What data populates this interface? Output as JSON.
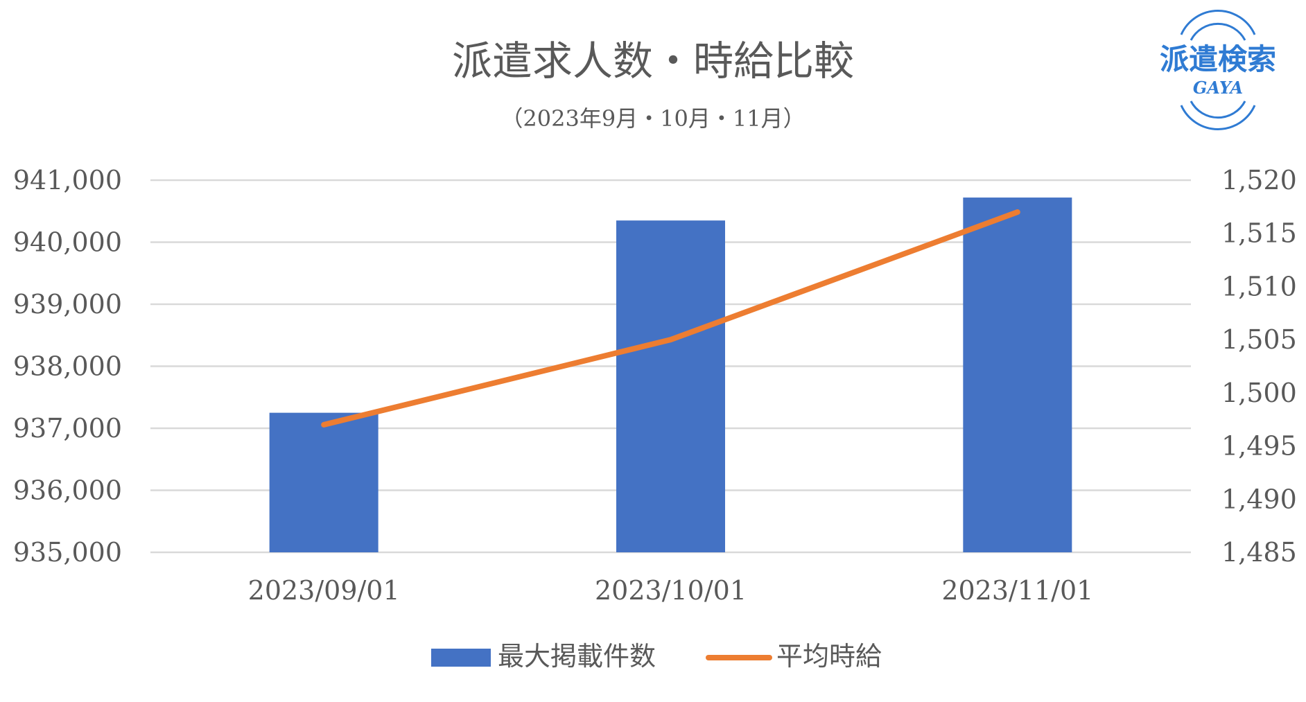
{
  "chart_data": {
    "type": "bar+line",
    "title": "派遣求人数・時給比較",
    "subtitle": "（2023年9月・10月・11月）",
    "categories": [
      "2023/09/01",
      "2023/10/01",
      "2023/11/01"
    ],
    "y_left": {
      "ticks": [
        "935,000",
        "936,000",
        "937,000",
        "938,000",
        "939,000",
        "940,000",
        "941,000"
      ],
      "ylim": [
        935000,
        941000
      ]
    },
    "y_right": {
      "ticks": [
        "1,485",
        "1,490",
        "1,495",
        "1,500",
        "1,505",
        "1,510",
        "1,515",
        "1,520"
      ],
      "ylim": [
        1485,
        1520
      ]
    },
    "series": [
      {
        "name": "最大掲載件数",
        "kind": "bar",
        "axis": "left",
        "color": "#4472C4",
        "values": [
          937250,
          940350,
          940720
        ]
      },
      {
        "name": "平均時給",
        "kind": "line",
        "axis": "right",
        "color": "#ED7D31",
        "values": [
          1497,
          1505,
          1517
        ]
      }
    ],
    "grid": true,
    "legend_position": "bottom"
  },
  "logo": {
    "text_top": "派遣検索",
    "text_bottom": "GAYA",
    "color": "#2F7BD3"
  }
}
